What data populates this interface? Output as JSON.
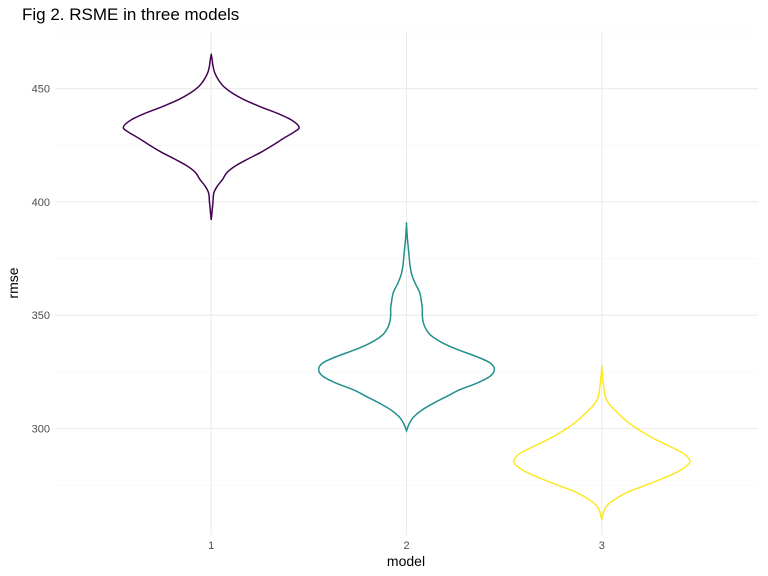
{
  "chart_data": {
    "type": "violin",
    "title": "Fig 2. RSME in three models",
    "xlabel": "model",
    "ylabel": "rmse",
    "categories": [
      "1",
      "2",
      "3"
    ],
    "ylim": [
      253,
      475
    ],
    "yticks": [
      300,
      350,
      400,
      450
    ],
    "grid": true,
    "legend": "none",
    "series": [
      {
        "category": "1",
        "color": "#440154",
        "min": 392,
        "max": 465,
        "density": [
          [
            392,
            0.0
          ],
          [
            396,
            0.01
          ],
          [
            400,
            0.02
          ],
          [
            404,
            0.03
          ],
          [
            407,
            0.07
          ],
          [
            410,
            0.13
          ],
          [
            413,
            0.18
          ],
          [
            416,
            0.28
          ],
          [
            419,
            0.42
          ],
          [
            422,
            0.57
          ],
          [
            425,
            0.7
          ],
          [
            428,
            0.82
          ],
          [
            431,
            0.95
          ],
          [
            433,
            1.0
          ],
          [
            436,
            0.92
          ],
          [
            439,
            0.76
          ],
          [
            442,
            0.56
          ],
          [
            445,
            0.38
          ],
          [
            448,
            0.24
          ],
          [
            451,
            0.14
          ],
          [
            454,
            0.08
          ],
          [
            457,
            0.04
          ],
          [
            460,
            0.02
          ],
          [
            463,
            0.01
          ],
          [
            465,
            0.0
          ]
        ]
      },
      {
        "category": "2",
        "color": "#21908C",
        "min": 299,
        "max": 390,
        "density": [
          [
            299,
            0.0
          ],
          [
            302,
            0.03
          ],
          [
            305,
            0.08
          ],
          [
            308,
            0.17
          ],
          [
            311,
            0.3
          ],
          [
            314,
            0.45
          ],
          [
            317,
            0.6
          ],
          [
            320,
            0.8
          ],
          [
            323,
            0.95
          ],
          [
            326,
            1.0
          ],
          [
            329,
            0.95
          ],
          [
            332,
            0.78
          ],
          [
            335,
            0.57
          ],
          [
            338,
            0.4
          ],
          [
            341,
            0.28
          ],
          [
            344,
            0.22
          ],
          [
            347,
            0.19
          ],
          [
            350,
            0.18
          ],
          [
            353,
            0.18
          ],
          [
            356,
            0.17
          ],
          [
            360,
            0.15
          ],
          [
            364,
            0.1
          ],
          [
            368,
            0.06
          ],
          [
            372,
            0.04
          ],
          [
            376,
            0.03
          ],
          [
            380,
            0.02
          ],
          [
            384,
            0.01
          ],
          [
            390,
            0.0
          ]
        ]
      },
      {
        "category": "3",
        "color": "#FDE725",
        "min": 260,
        "max": 327,
        "density": [
          [
            260,
            0.0
          ],
          [
            263,
            0.02
          ],
          [
            266,
            0.06
          ],
          [
            269,
            0.16
          ],
          [
            272,
            0.3
          ],
          [
            275,
            0.5
          ],
          [
            278,
            0.7
          ],
          [
            281,
            0.87
          ],
          [
            284,
            0.98
          ],
          [
            286,
            1.0
          ],
          [
            289,
            0.93
          ],
          [
            292,
            0.78
          ],
          [
            295,
            0.62
          ],
          [
            298,
            0.48
          ],
          [
            301,
            0.36
          ],
          [
            304,
            0.26
          ],
          [
            307,
            0.18
          ],
          [
            310,
            0.1
          ],
          [
            313,
            0.05
          ],
          [
            316,
            0.03
          ],
          [
            319,
            0.02
          ],
          [
            322,
            0.01
          ],
          [
            327,
            0.0
          ]
        ]
      }
    ]
  }
}
